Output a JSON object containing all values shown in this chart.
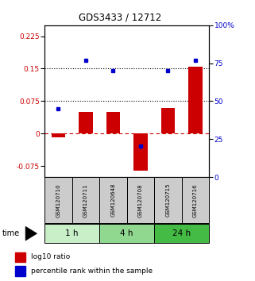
{
  "title": "GDS3433 / 12712",
  "samples": [
    "GSM120710",
    "GSM120711",
    "GSM120648",
    "GSM120708",
    "GSM120715",
    "GSM120716"
  ],
  "log10_ratio": [
    -0.008,
    0.05,
    0.05,
    -0.085,
    0.06,
    0.155
  ],
  "percentile_rank": [
    45,
    77,
    70,
    20.5,
    70,
    77
  ],
  "groups": [
    {
      "label": "1 h",
      "indices": [
        0,
        1
      ],
      "color": "#c8efc8"
    },
    {
      "label": "4 h",
      "indices": [
        2,
        3
      ],
      "color": "#90d890"
    },
    {
      "label": "24 h",
      "indices": [
        4,
        5
      ],
      "color": "#44bb44"
    }
  ],
  "bar_color": "#cc0000",
  "dot_color": "#0000cc",
  "ylim_left": [
    -0.1,
    0.25
  ],
  "ylim_right": [
    0,
    100
  ],
  "yticks_left": [
    -0.075,
    0,
    0.075,
    0.15,
    0.225
  ],
  "yticks_right": [
    0,
    25,
    50,
    75,
    100
  ],
  "hline_zero_color": "#cc0000",
  "hline_dotted_vals": [
    0.075,
    0.15
  ],
  "bar_width": 0.5,
  "time_label": "time",
  "legend_ratio_label": "log10 ratio",
  "legend_pct_label": "percentile rank within the sample",
  "sample_box_color": "#cccccc"
}
